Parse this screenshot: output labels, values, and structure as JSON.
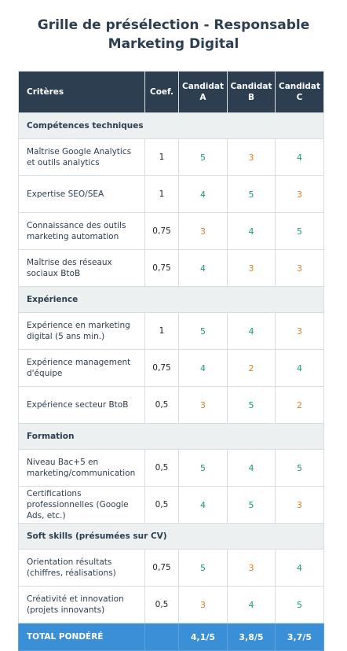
{
  "title_line1": "Grille de présélection - Responsable",
  "title_line2": "Marketing Digital",
  "header": {
    "criteria": "Critères",
    "coef": "Coef.",
    "candidates": [
      "Candidat A",
      "Candidat B",
      "Candidat C"
    ]
  },
  "sections": [
    {
      "name": "Compétences techniques",
      "rows": [
        {
          "criterion": "Maîtrise Google Analytics et outils analytics",
          "coef": "1",
          "scores": [
            "5",
            "3",
            "4"
          ]
        },
        {
          "criterion": "Expertise SEO/SEA",
          "coef": "1",
          "scores": [
            "4",
            "5",
            "3"
          ]
        },
        {
          "criterion": "Connaissance des outils marketing automation",
          "coef": "0,75",
          "scores": [
            "3",
            "4",
            "5"
          ]
        },
        {
          "criterion": "Maîtrise des réseaux sociaux BtoB",
          "coef": "0,75",
          "scores": [
            "4",
            "3",
            "3"
          ]
        }
      ]
    },
    {
      "name": "Expérience",
      "rows": [
        {
          "criterion": "Expérience en marketing digital (5 ans min.)",
          "coef": "1",
          "scores": [
            "5",
            "4",
            "3"
          ]
        },
        {
          "criterion": "Expérience management d'équipe",
          "coef": "0,75",
          "scores": [
            "4",
            "2",
            "4"
          ]
        },
        {
          "criterion": "Expérience secteur BtoB",
          "coef": "0,5",
          "scores": [
            "3",
            "5",
            "2"
          ]
        }
      ]
    },
    {
      "name": "Formation",
      "rows": [
        {
          "criterion": "Niveau Bac+5 en marketing/communication",
          "coef": "0,5",
          "scores": [
            "5",
            "4",
            "5"
          ]
        },
        {
          "criterion": "Certifications professionnelles (Google Ads, etc.)",
          "coef": "0,5",
          "scores": [
            "4",
            "5",
            "3"
          ]
        }
      ]
    },
    {
      "name": "Soft skills (présumées sur CV)",
      "rows": [
        {
          "criterion": "Orientation résultats (chiffres, réalisations)",
          "coef": "0,75",
          "scores": [
            "5",
            "3",
            "4"
          ]
        },
        {
          "criterion": "Créativité et innovation (projets innovants)",
          "coef": "0,5",
          "scores": [
            "3",
            "4",
            "5"
          ]
        }
      ]
    }
  ],
  "total": {
    "label": "TOTAL PONDÉRÉ",
    "coef": "",
    "scores": [
      "4,1/5",
      "3,8/5",
      "3,7/5"
    ]
  },
  "colors": {
    "header_bg": "#2c3e50",
    "section_bg": "#ecf0f1",
    "total_bg": "#3b8fd6",
    "score_high": "#1a9b7a",
    "score_low": "#e67e22"
  }
}
